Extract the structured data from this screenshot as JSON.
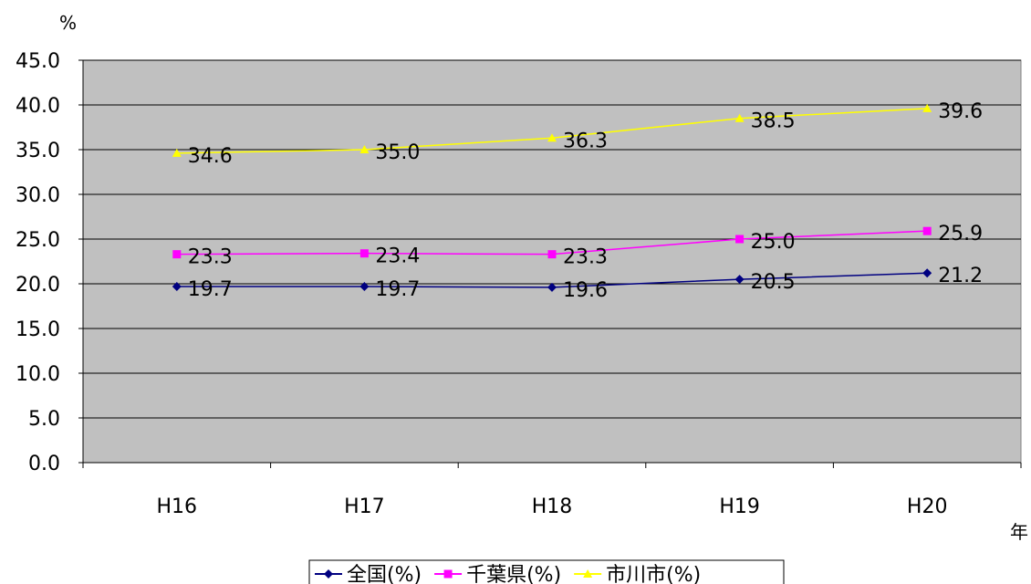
{
  "chart_data": {
    "type": "line",
    "title": "",
    "ylabel": "%",
    "xlabel": "年",
    "categories": [
      "H16",
      "H17",
      "H18",
      "H19",
      "H20"
    ],
    "ylim": [
      0,
      45
    ],
    "ytick_step": 5,
    "ytick_labels": [
      "0.0",
      "5.0",
      "10.0",
      "15.0",
      "20.0",
      "25.0",
      "30.0",
      "35.0",
      "40.0",
      "45.0"
    ],
    "grid": true,
    "plot_background": "#c0c0c0",
    "legend_position": "bottom",
    "series": [
      {
        "name": "全国(%)",
        "values": [
          19.7,
          19.7,
          19.6,
          20.5,
          21.2
        ],
        "labels": [
          "19.7",
          "19.7",
          "19.6",
          "20.5",
          "21.2"
        ],
        "color": "#000080",
        "marker": "diamond"
      },
      {
        "name": "千葉県(%)",
        "values": [
          23.3,
          23.4,
          23.3,
          25.0,
          25.9
        ],
        "labels": [
          "23.3",
          "23.4",
          "23.3",
          "25.0",
          "25.9"
        ],
        "color": "#ff00ff",
        "marker": "square"
      },
      {
        "name": "市川市(%)",
        "values": [
          34.6,
          35.0,
          36.3,
          38.5,
          39.6
        ],
        "labels": [
          "34.6",
          "35.0",
          "36.3",
          "38.5",
          "39.6"
        ],
        "color": "#ffff00",
        "marker": "triangle"
      }
    ]
  }
}
